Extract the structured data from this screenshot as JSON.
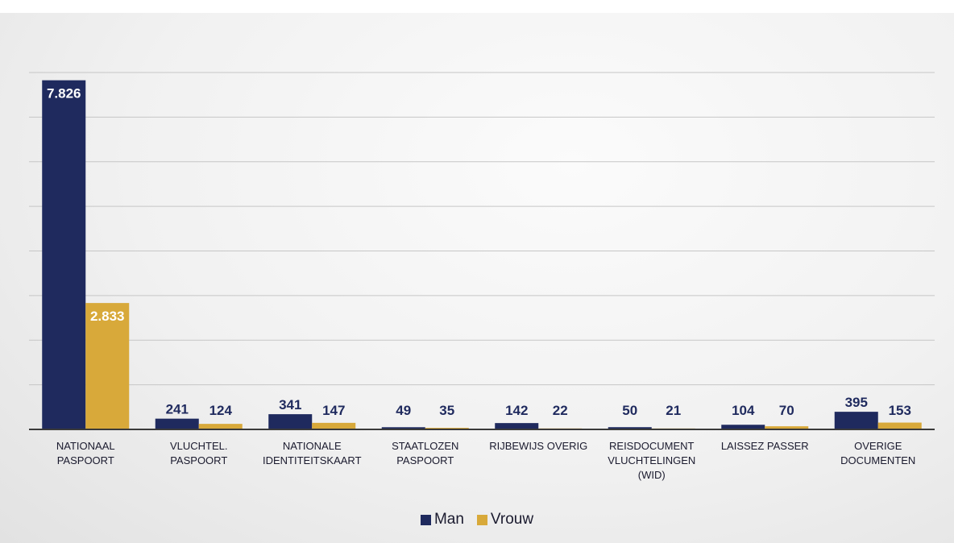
{
  "chart_data": {
    "type": "bar",
    "title": "",
    "xlabel": "",
    "ylabel": "",
    "ylim": [
      0,
      8000
    ],
    "grid": true,
    "legend_position": "bottom-center",
    "categories": [
      [
        "NATIONAAL",
        "PASPOORT"
      ],
      [
        "VLUCHTEL.",
        "PASPOORT"
      ],
      [
        "NATIONALE",
        "IDENTITEITSKAART"
      ],
      [
        "STAATLOZEN",
        "PASPOORT"
      ],
      [
        "RIJBEWIJS OVERIG"
      ],
      [
        "REISDOCUMENT",
        "VLUCHTELINGEN",
        "(WID)"
      ],
      [
        "LAISSEZ PASSER"
      ],
      [
        "OVERIGE",
        "DOCUMENTEN"
      ]
    ],
    "series": [
      {
        "name": "Man",
        "color": "#1f2a5e",
        "values": [
          7826,
          241,
          341,
          49,
          142,
          50,
          104,
          395
        ],
        "labels": [
          "7.826",
          "241",
          "341",
          "49",
          "142",
          "50",
          "104",
          "395"
        ]
      },
      {
        "name": "Vrouw",
        "color": "#d8a93a",
        "values": [
          2833,
          124,
          147,
          35,
          22,
          21,
          70,
          153
        ],
        "labels": [
          "2.833",
          "124",
          "147",
          "35",
          "22",
          "21",
          "70",
          "153"
        ]
      }
    ]
  }
}
